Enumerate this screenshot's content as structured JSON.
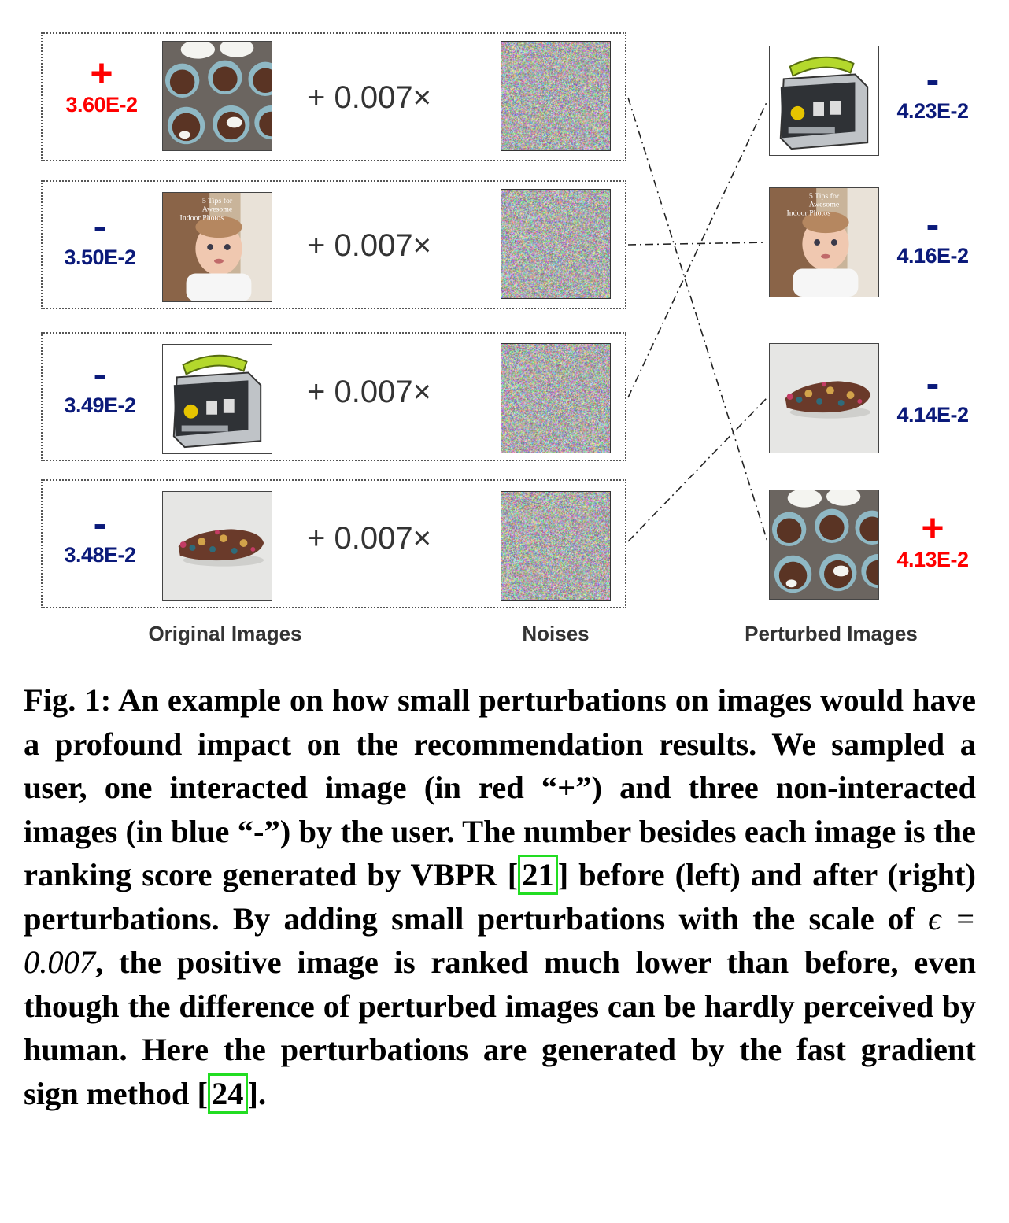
{
  "figure": {
    "multiplier_text": "+ 0.007×",
    "column_labels": {
      "original": "Original Images",
      "noises": "Noises",
      "perturbed": "Perturbed Images"
    },
    "colors": {
      "positive": "#ff0000",
      "negative": "#0b1a7a",
      "reference_box": "#22dd22"
    },
    "original": [
      {
        "sign": "+",
        "score": "3.60E-2",
        "image": "muffin-tray"
      },
      {
        "sign": "-",
        "score": "3.50E-2",
        "image": "baby-photo",
        "image_text": [
          "5 Tips for",
          "Awesome",
          "Indoor Photos"
        ]
      },
      {
        "sign": "-",
        "score": "3.49E-2",
        "image": "power-station"
      },
      {
        "sign": "-",
        "score": "3.48E-2",
        "image": "folded-fabric"
      }
    ],
    "perturbed": [
      {
        "sign": "-",
        "score": "4.23E-2",
        "image": "power-station"
      },
      {
        "sign": "-",
        "score": "4.16E-2",
        "image": "baby-photo",
        "image_text": [
          "5 Tips for",
          "Awesome",
          "Indoor Photos"
        ]
      },
      {
        "sign": "-",
        "score": "4.14E-2",
        "image": "folded-fabric"
      },
      {
        "sign": "+",
        "score": "4.13E-2",
        "image": "muffin-tray"
      }
    ]
  },
  "caption": {
    "label": "Fig. 1:",
    "text_1": "An example on how small perturbations on images would have a profound impact on the recommendation results. We sampled a user, one interacted image (in red “+”) and three non-interacted images (in blue “-”) by the user. The number besides each image is the ranking score generated by VBPR [",
    "ref_1": "21",
    "text_2": "] before (left) and after (right) perturbations. By adding small perturbations with the scale of ",
    "epsilon": "ϵ = 0.007",
    "text_3": ", the positive image is ranked much lower than before, even though the difference of perturbed images can be hardly perceived by human. Here the perturbations are generated by the fast gradient sign method [",
    "ref_2": "24",
    "text_4": "]."
  }
}
